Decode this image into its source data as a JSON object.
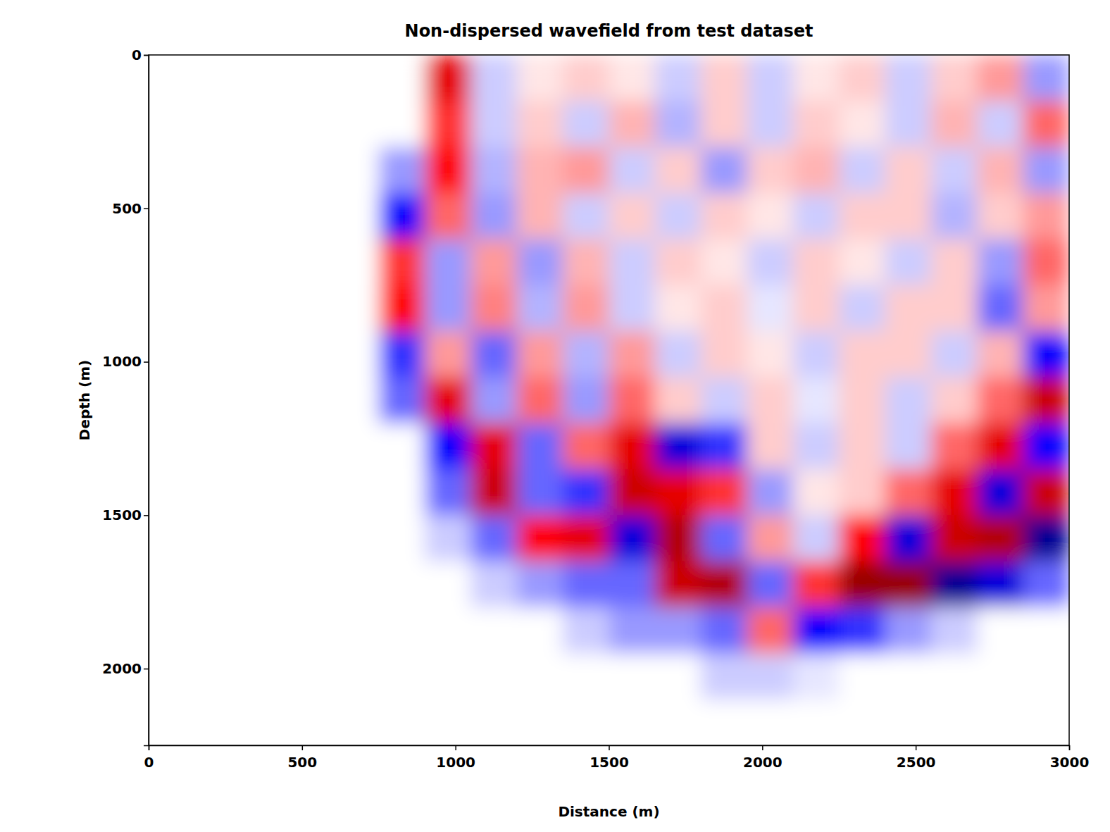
{
  "chart_data": {
    "type": "heatmap",
    "title": "Non-dispersed wavefield from test dataset",
    "x_label": "Distance (m)",
    "y_label": "Depth (m)",
    "xlim": [
      0,
      3000
    ],
    "ylim": [
      0,
      2250
    ],
    "xticks": [
      0,
      500,
      1000,
      1500,
      2000,
      2500,
      3000
    ],
    "yticks": [
      0,
      500,
      1000,
      1500,
      2000
    ],
    "color_range": [
      -1,
      1
    ],
    "x": [
      75,
      225,
      375,
      525,
      675,
      825,
      975,
      1125,
      1275,
      1425,
      1575,
      1725,
      1875,
      2025,
      2175,
      2325,
      2475,
      2625,
      2775,
      2925
    ],
    "y": [
      75,
      225,
      375,
      525,
      675,
      825,
      975,
      1125,
      1275,
      1425,
      1575,
      1725,
      1875,
      2025,
      2175
    ],
    "values": [
      [
        0,
        0,
        0,
        0,
        0,
        0,
        0.6,
        -0.1,
        0.05,
        0.1,
        0.05,
        -0.1,
        0.1,
        -0.1,
        0.05,
        0.1,
        -0.1,
        0.1,
        0.2,
        -0.2
      ],
      [
        0,
        0,
        0,
        0,
        0,
        0,
        0.4,
        -0.1,
        0.1,
        -0.1,
        0.15,
        -0.15,
        0.1,
        -0.1,
        0.1,
        0.05,
        -0.1,
        0.15,
        -0.1,
        0.3
      ],
      [
        0,
        0,
        0,
        0,
        0,
        -0.2,
        0.5,
        -0.15,
        0.15,
        0.2,
        -0.1,
        0.1,
        -0.2,
        0.1,
        0.15,
        -0.1,
        0.1,
        -0.1,
        0.15,
        -0.2
      ],
      [
        0,
        0,
        0,
        0,
        0,
        -0.5,
        0.3,
        -0.2,
        0.15,
        -0.1,
        0.1,
        -0.1,
        0.1,
        0.05,
        -0.1,
        0.1,
        0.1,
        -0.15,
        0.1,
        0.2
      ],
      [
        0,
        0,
        0,
        0,
        0,
        0.4,
        -0.2,
        0.2,
        -0.2,
        0.15,
        -0.1,
        0.1,
        0.05,
        -0.1,
        0.1,
        0.05,
        -0.1,
        0.1,
        -0.2,
        0.3
      ],
      [
        0,
        0,
        0,
        0,
        0,
        0.5,
        -0.2,
        0.25,
        -0.15,
        0.2,
        -0.1,
        0.05,
        0.1,
        -0.05,
        0.1,
        -0.1,
        0.1,
        0.1,
        -0.3,
        0.2
      ],
      [
        0,
        0,
        0,
        0,
        0,
        -0.4,
        0.2,
        -0.3,
        0.2,
        -0.15,
        0.2,
        -0.1,
        0.1,
        0.05,
        -0.1,
        0.1,
        0.1,
        -0.1,
        0.15,
        -0.5
      ],
      [
        0,
        0,
        0,
        0,
        0,
        -0.3,
        0.6,
        -0.2,
        0.3,
        -0.2,
        0.3,
        0.1,
        -0.1,
        0.1,
        -0.05,
        0.1,
        -0.1,
        0.1,
        0.3,
        0.7
      ],
      [
        0,
        0,
        0,
        0,
        0,
        0,
        -0.5,
        0.6,
        -0.3,
        0.3,
        0.6,
        -0.6,
        -0.4,
        0.1,
        -0.1,
        0.1,
        -0.1,
        0.3,
        0.6,
        -0.5
      ],
      [
        0,
        0,
        0,
        0,
        0,
        0,
        -0.3,
        0.7,
        -0.3,
        -0.4,
        0.7,
        0.6,
        0.4,
        -0.2,
        0.05,
        0.1,
        0.3,
        0.6,
        -0.6,
        0.7
      ],
      [
        0,
        0,
        0,
        0,
        0,
        0,
        -0.1,
        -0.3,
        0.5,
        0.6,
        -0.6,
        0.8,
        -0.3,
        0.2,
        -0.1,
        0.5,
        -0.6,
        0.7,
        0.8,
        -0.8
      ],
      [
        0,
        0,
        0,
        0,
        0,
        0,
        0,
        -0.1,
        -0.2,
        -0.3,
        -0.3,
        0.7,
        0.8,
        -0.3,
        0.4,
        0.9,
        0.9,
        -0.8,
        -0.6,
        -0.3
      ],
      [
        0,
        0,
        0,
        0,
        0,
        0,
        0,
        0,
        0,
        -0.1,
        -0.2,
        -0.2,
        -0.3,
        0.3,
        -0.5,
        -0.4,
        -0.2,
        -0.1,
        0,
        0
      ],
      [
        0,
        0,
        0,
        0,
        0,
        0,
        0,
        0,
        0,
        0,
        0,
        0,
        -0.1,
        -0.1,
        -0.05,
        0,
        0,
        0,
        0,
        0
      ],
      [
        0,
        0,
        0,
        0,
        0,
        0,
        0,
        0,
        0,
        0,
        0,
        0,
        0,
        0,
        0,
        0,
        0,
        0,
        0,
        0
      ]
    ]
  }
}
